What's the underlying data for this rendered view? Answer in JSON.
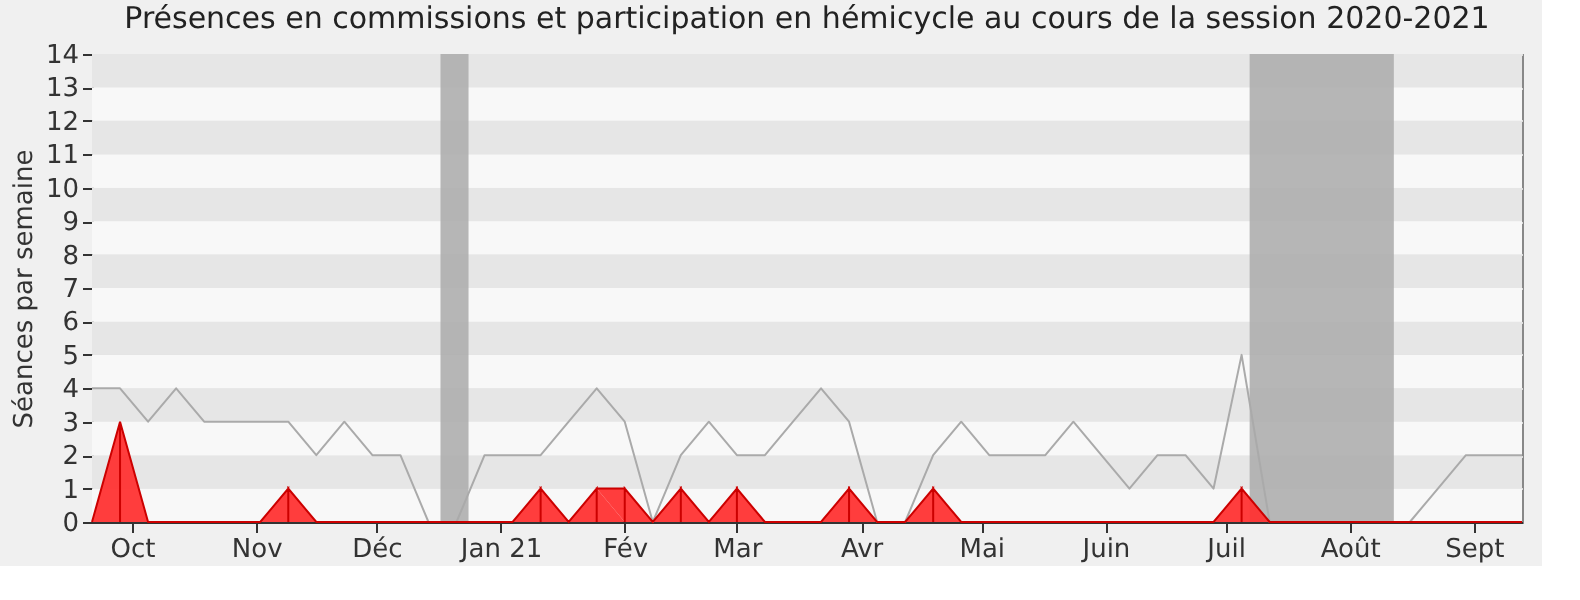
{
  "chart_data": {
    "type": "line",
    "title": "Présences en commissions et participation en hémicycle au cours de la session 2020-2021",
    "ylabel": "Séances par semaine",
    "x": [
      "2020-09-21",
      "2020-09-28",
      "2020-10-05",
      "2020-10-12",
      "2020-10-19",
      "2020-10-26",
      "2020-11-02",
      "2020-11-09",
      "2020-11-16",
      "2020-11-23",
      "2020-11-30",
      "2020-12-07",
      "2020-12-14",
      "2020-12-21",
      "2020-12-28",
      "2021-01-04",
      "2021-01-11",
      "2021-01-18",
      "2021-01-25",
      "2021-02-01",
      "2021-02-08",
      "2021-02-15",
      "2021-02-22",
      "2021-03-01",
      "2021-03-08",
      "2021-03-15",
      "2021-03-22",
      "2021-03-29",
      "2021-04-05",
      "2021-04-12",
      "2021-04-19",
      "2021-04-26",
      "2021-05-03",
      "2021-05-10",
      "2021-05-17",
      "2021-05-24",
      "2021-05-31",
      "2021-06-07",
      "2021-06-14",
      "2021-06-21",
      "2021-06-28",
      "2021-07-05",
      "2021-07-12",
      "2021-07-19",
      "2021-07-26",
      "2021-08-02",
      "2021-08-09",
      "2021-08-16",
      "2021-08-23",
      "2021-08-30",
      "2021-09-06",
      "2021-09-13"
    ],
    "series": [
      {
        "color": "#aaaaaa",
        "values": [
          4,
          4,
          3,
          4,
          3,
          3,
          3,
          3,
          2,
          3,
          2,
          2,
          0,
          0,
          2,
          2,
          2,
          3,
          4,
          3,
          0,
          2,
          3,
          2,
          2,
          3,
          4,
          3,
          0,
          0,
          2,
          3,
          2,
          2,
          2,
          3,
          2,
          1,
          2,
          2,
          1,
          5,
          0,
          0,
          0,
          0,
          0,
          0,
          1,
          2,
          2,
          2
        ]
      },
      {
        "type": "area",
        "color": "#ff3333",
        "values": [
          0,
          3,
          0,
          0,
          0,
          0,
          0,
          1,
          0,
          0,
          0,
          0,
          0,
          0,
          0,
          0,
          1,
          0,
          1,
          1,
          0,
          1,
          0,
          1,
          0,
          0,
          0,
          1,
          0,
          0,
          1,
          0,
          0,
          0,
          0,
          0,
          0,
          0,
          0,
          0,
          0,
          1,
          0,
          0,
          0,
          0,
          0,
          0,
          0,
          0,
          0,
          0
        ]
      }
    ],
    "xlim": [
      "2020-09-21",
      "2021-09-13"
    ],
    "xticks": [
      {
        "value": "2020-10-01",
        "label": "Oct"
      },
      {
        "value": "2020-11-01",
        "label": "Nov"
      },
      {
        "value": "2020-12-01",
        "label": "Déc"
      },
      {
        "value": "2021-01-01",
        "label": "Jan 21"
      },
      {
        "value": "2021-02-01",
        "label": "Fév"
      },
      {
        "value": "2021-03-01",
        "label": "Mar"
      },
      {
        "value": "2021-04-01",
        "label": "Avr"
      },
      {
        "value": "2021-05-01",
        "label": "Mai"
      },
      {
        "value": "2021-06-01",
        "label": "Juin"
      },
      {
        "value": "2021-07-01",
        "label": "Juil"
      },
      {
        "value": "2021-08-01",
        "label": "Août"
      },
      {
        "value": "2021-09-01",
        "label": "Sept"
      }
    ],
    "ylim": [
      0,
      14
    ],
    "yticks": [
      0,
      1,
      2,
      3,
      4,
      5,
      6,
      7,
      8,
      9,
      10,
      11,
      12,
      13,
      14
    ],
    "bands": [
      {
        "axis": "x",
        "from": "2020-12-17",
        "to": "2020-12-24",
        "color": "#aaaaaa"
      },
      {
        "axis": "x",
        "from": "2021-07-07",
        "to": "2021-08-12",
        "color": "#aaaaaa"
      }
    ],
    "grid": "y"
  }
}
